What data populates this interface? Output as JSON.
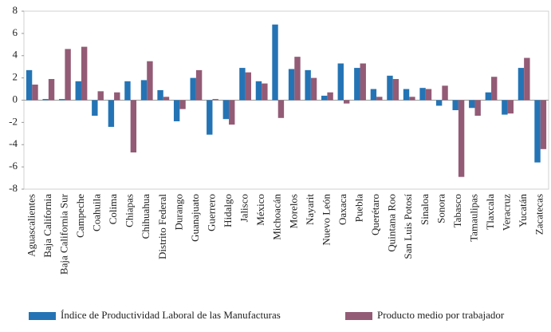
{
  "chart_data": {
    "type": "bar",
    "categories": [
      "Aguascalientes",
      "Baja California",
      "Baja California Sur",
      "Campeche",
      "Coahuila",
      "Colima",
      "Chiapas",
      "Chihuahua",
      "Distrito Federal",
      "Durango",
      "Guanajuato",
      "Guerrero",
      "Hidalgo",
      "Jalisco",
      "México",
      "Michoacán",
      "Morelos",
      "Nayarit",
      "Nuevo León",
      "Oaxaca",
      "Puebla",
      "Querétaro",
      "Quintana Roo",
      "San Luis Potosí",
      "Sinaloa",
      "Sonora",
      "Tabasco",
      "Tamaulipas",
      "Tlaxcala",
      "Veracruz",
      "Yucatán",
      "Zacatecas"
    ],
    "series": [
      {
        "name": "Índice de Productividad Laboral de las Manufacturas",
        "color": "#2474b5",
        "values": [
          2.7,
          0.1,
          0.1,
          1.7,
          -1.4,
          -2.4,
          1.7,
          1.8,
          0.9,
          -1.9,
          2.0,
          -3.1,
          -1.7,
          2.9,
          1.7,
          6.8,
          2.8,
          2.7,
          0.4,
          3.3,
          2.9,
          1.0,
          2.2,
          1.0,
          1.1,
          -0.5,
          -0.9,
          -0.7,
          0.7,
          -1.3,
          2.9,
          -5.6
        ]
      },
      {
        "name": "Producto medio por trabajador",
        "color": "#935b76",
        "values": [
          1.4,
          1.9,
          4.6,
          4.8,
          0.8,
          0.7,
          -4.7,
          3.5,
          0.3,
          -0.8,
          2.7,
          0.1,
          -2.2,
          2.5,
          1.5,
          -1.6,
          3.9,
          2.0,
          0.7,
          -0.3,
          3.3,
          0.3,
          1.9,
          0.3,
          1.0,
          1.3,
          -6.9,
          -1.4,
          2.1,
          -1.2,
          3.8,
          -4.4
        ]
      }
    ],
    "ylim": [
      -8,
      8
    ],
    "yticks": [
      -8,
      -6,
      -4,
      -2,
      0,
      2,
      4,
      6,
      8
    ],
    "grid": false,
    "legend": "bottom"
  }
}
